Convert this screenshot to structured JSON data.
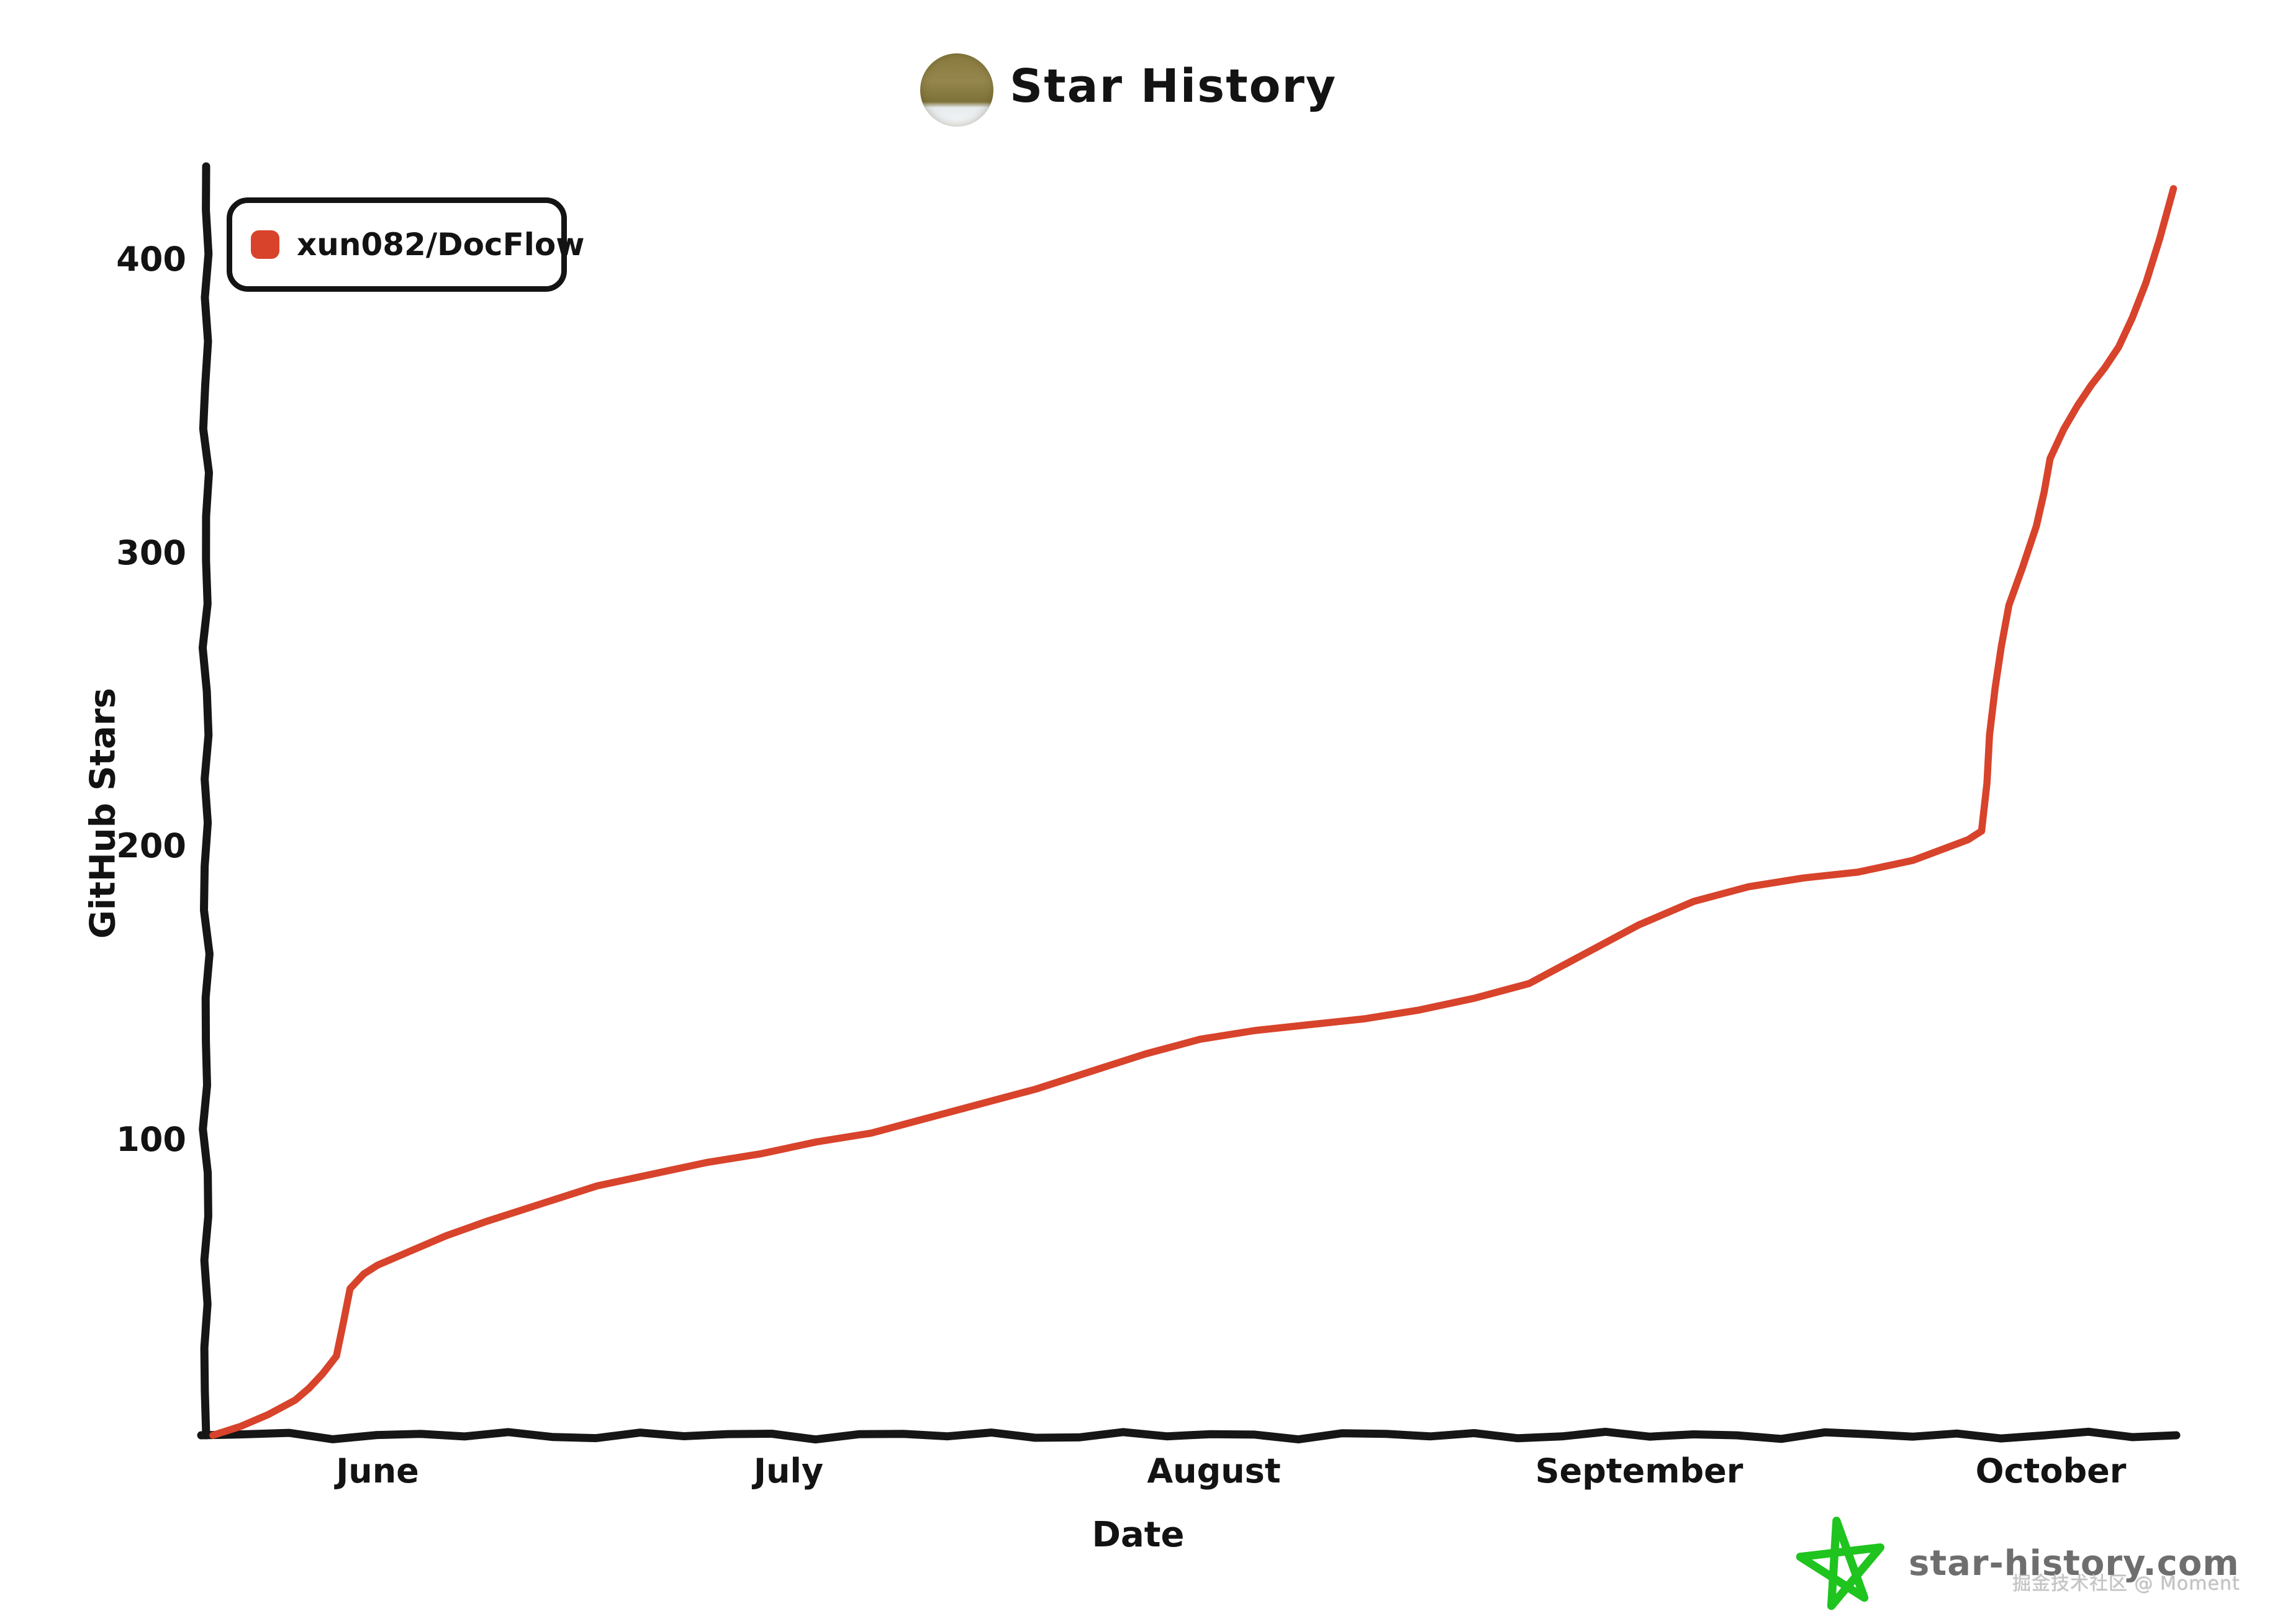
{
  "title": "Star History",
  "legend": {
    "label": "xun082/DocFlow",
    "marker_color": "#d8432b"
  },
  "axes": {
    "x_label": "Date",
    "y_label": "GitHub Stars",
    "x_ticks": [
      "June",
      "July",
      "August",
      "September",
      "October"
    ],
    "y_ticks": [
      100,
      200,
      300,
      400
    ]
  },
  "branding": {
    "site": "star-history.com",
    "star_icon_color": "#1fc41f",
    "text_color": "#6e6e6e"
  },
  "watermark": "掘金技术社区 @ Moment",
  "chart_data": {
    "type": "line",
    "title": "Star History",
    "xlabel": "Date",
    "ylabel": "GitHub Stars",
    "x_ticks": [
      "June",
      "July",
      "August",
      "September",
      "October"
    ],
    "y_ticks": [
      100,
      200,
      300,
      400
    ],
    "ylim": [
      0,
      432
    ],
    "grid": false,
    "legend_position": "top-left",
    "series": [
      {
        "name": "xun082/DocFlow",
        "color": "#d8432b",
        "style": "xkcd-handdrawn",
        "points": [
          {
            "date": "May 20",
            "stars": 0
          },
          {
            "date": "May 22",
            "stars": 3
          },
          {
            "date": "May 24",
            "stars": 7
          },
          {
            "date": "May 26",
            "stars": 12
          },
          {
            "date": "May 27",
            "stars": 16
          },
          {
            "date": "May 28",
            "stars": 21
          },
          {
            "date": "May 29",
            "stars": 27
          },
          {
            "date": "May 30",
            "stars": 50
          },
          {
            "date": "May 31",
            "stars": 55
          },
          {
            "date": "Jun 1",
            "stars": 58
          },
          {
            "date": "Jun 3",
            "stars": 62
          },
          {
            "date": "Jun 6",
            "stars": 68
          },
          {
            "date": "Jun 9",
            "stars": 73
          },
          {
            "date": "Jun 13",
            "stars": 79
          },
          {
            "date": "Jun 17",
            "stars": 85
          },
          {
            "date": "Jun 21",
            "stars": 89
          },
          {
            "date": "Jun 25",
            "stars": 93
          },
          {
            "date": "Jun 29",
            "stars": 96
          },
          {
            "date": "Jul 3",
            "stars": 100
          },
          {
            "date": "Jul 7",
            "stars": 103
          },
          {
            "date": "Jul 11",
            "stars": 108
          },
          {
            "date": "Jul 15",
            "stars": 113
          },
          {
            "date": "Jul 19",
            "stars": 118
          },
          {
            "date": "Jul 23",
            "stars": 124
          },
          {
            "date": "Jul 27",
            "stars": 130
          },
          {
            "date": "Jul 31",
            "stars": 135
          },
          {
            "date": "Aug 4",
            "stars": 138
          },
          {
            "date": "Aug 8",
            "stars": 140
          },
          {
            "date": "Aug 12",
            "stars": 142
          },
          {
            "date": "Aug 16",
            "stars": 145
          },
          {
            "date": "Aug 20",
            "stars": 149
          },
          {
            "date": "Aug 24",
            "stars": 154
          },
          {
            "date": "Aug 28",
            "stars": 164
          },
          {
            "date": "Sep 1",
            "stars": 174
          },
          {
            "date": "Sep 5",
            "stars": 182
          },
          {
            "date": "Sep 9",
            "stars": 187
          },
          {
            "date": "Sep 13",
            "stars": 190
          },
          {
            "date": "Sep 17",
            "stars": 192
          },
          {
            "date": "Sep 21",
            "stars": 196
          },
          {
            "date": "Sep 25",
            "stars": 203
          },
          {
            "date": "Sep 26",
            "stars": 206
          },
          {
            "date": "Sep 27",
            "stars": 255
          },
          {
            "date": "Sep 28",
            "stars": 283
          },
          {
            "date": "Sep 29",
            "stars": 296
          },
          {
            "date": "Sep 30",
            "stars": 310
          },
          {
            "date": "Oct 1",
            "stars": 333
          },
          {
            "date": "Oct 2",
            "stars": 343
          },
          {
            "date": "Oct 3",
            "stars": 351
          },
          {
            "date": "Oct 4",
            "stars": 358
          },
          {
            "date": "Oct 5",
            "stars": 364
          },
          {
            "date": "Oct 6",
            "stars": 371
          },
          {
            "date": "Oct 7",
            "stars": 381
          },
          {
            "date": "Oct 8",
            "stars": 393
          },
          {
            "date": "Oct 9",
            "stars": 408
          },
          {
            "date": "Oct 10",
            "stars": 425
          }
        ]
      }
    ]
  }
}
